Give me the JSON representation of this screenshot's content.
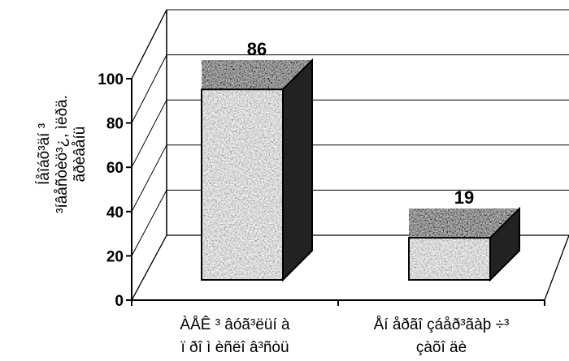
{
  "chart_data": {
    "type": "bar",
    "categories": [
      [
        "ÀÅÊ ³ âóã³ëüí à",
        "ï ðî ì èñëî â³ñòü"
      ],
      [
        "Åí åðãî çáåð³ãàþ ÷³",
        "çàõî äè"
      ]
    ],
    "values": [
      86,
      19
    ],
    "value_labels": [
      "86",
      "19"
    ],
    "ylim": [
      0,
      100
    ],
    "yticks": [
      "0",
      "20",
      "40",
      "60",
      "80",
      "100"
    ],
    "ylabel_lines": [
      "Íåîáõ³äí ³",
      "³íâåñòèö³¿, ìëðä.",
      "ãðèâåíü"
    ],
    "grid": true,
    "legend": "none",
    "bar_color": "#9a9a9a"
  }
}
